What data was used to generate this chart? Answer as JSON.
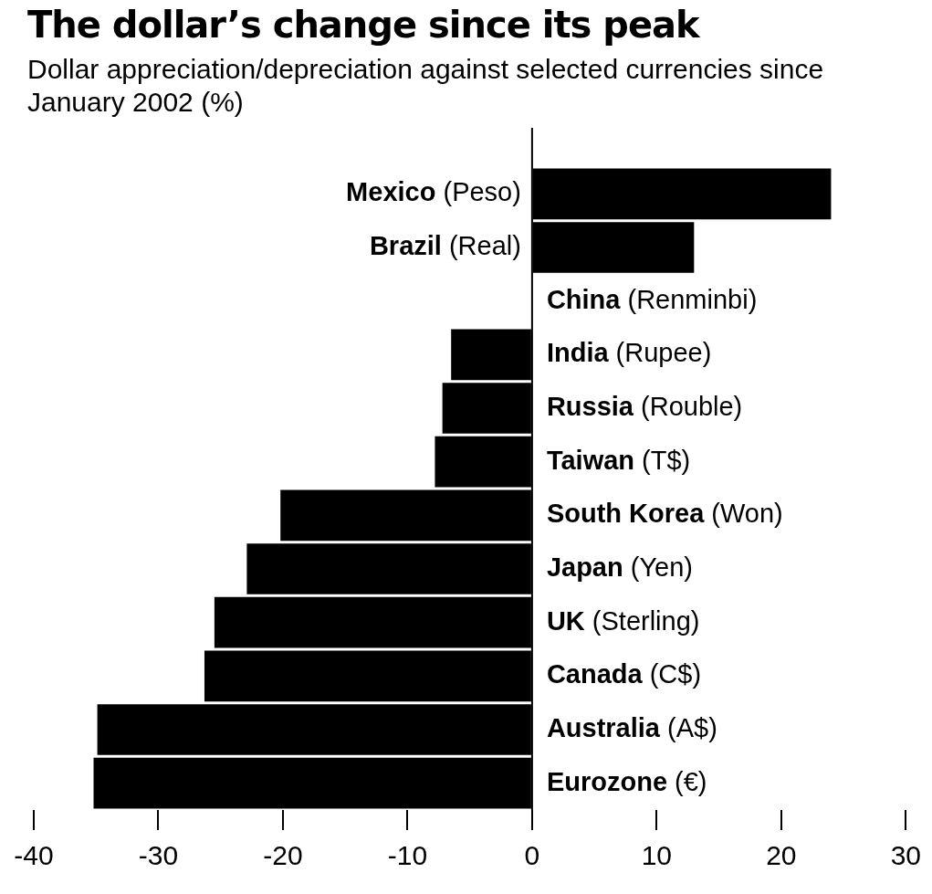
{
  "chart_data": {
    "type": "bar",
    "orientation": "horizontal",
    "title": "The dollar’s change since its peak",
    "subtitle": "Dollar appreciation/depreciation against selected currencies since January 2002 (%)",
    "categories": [
      "Mexico (Peso)",
      "Brazil (Real)",
      "China (Renminbi)",
      "India (Rupee)",
      "Russia (Rouble)",
      "Taiwan (T$)",
      "South Korea (Won)",
      "Japan (Yen)",
      "UK (Sterling)",
      "Canada (C$)",
      "Australia (A$)",
      "Eurozone (€)"
    ],
    "values": [
      24,
      13,
      0,
      -6.5,
      -7.2,
      -7.8,
      -20.2,
      -22.9,
      -25.5,
      -26.3,
      -34.9,
      -35.2
    ],
    "color": "#000000",
    "xlim": [
      -40,
      30
    ],
    "xticks": [
      -40,
      -30,
      -20,
      -10,
      0,
      10,
      20,
      30
    ],
    "grid": false,
    "legend": false
  }
}
